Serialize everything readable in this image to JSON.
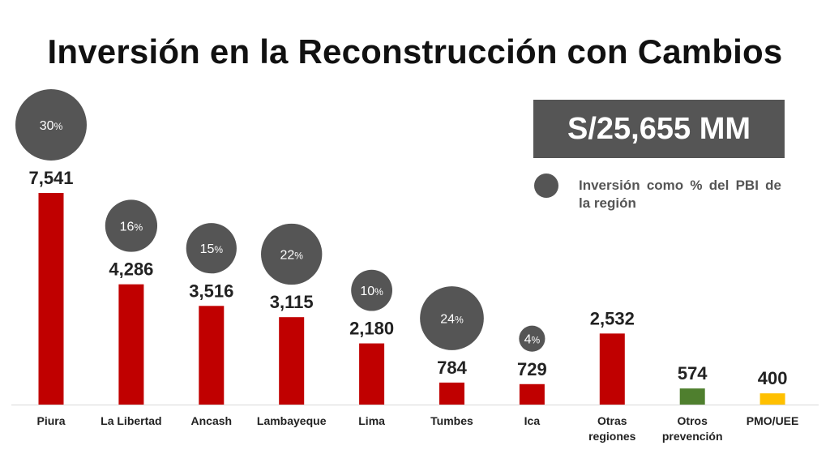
{
  "title": "Inversión en la Reconstrucción con Cambios",
  "total": "S/25,655 MM",
  "legend": {
    "text": "Inversión como % del PBI de la región",
    "color": "#555555"
  },
  "colors": {
    "red": "#c00000",
    "green": "#4f7f2e",
    "yellow": "#ffc000",
    "bubble": "#555555"
  },
  "chart_data": {
    "type": "bar",
    "title": "Inversión en la Reconstrucción con Cambios",
    "xlabel": "",
    "ylabel": "",
    "ylim": [
      0,
      7541
    ],
    "grid": false,
    "categories": [
      "Piura",
      "La Libertad",
      "Ancash",
      "Lambayeque",
      "Lima",
      "Tumbes",
      "Ica",
      "Otras regiones",
      "Otros prevención",
      "PMO/UEE"
    ],
    "values": [
      7541,
      4286,
      3516,
      3115,
      2180,
      784,
      729,
      2532,
      574,
      400
    ],
    "value_labels": [
      "7,541",
      "4,286",
      "3,516",
      "3,115",
      "2,180",
      "784",
      "729",
      "2,532",
      "574",
      "400"
    ],
    "bar_colors": [
      "red",
      "red",
      "red",
      "red",
      "red",
      "red",
      "red",
      "red",
      "green",
      "yellow"
    ],
    "pbi_percent": [
      30,
      16,
      15,
      22,
      10,
      24,
      4,
      null,
      null,
      null
    ],
    "pbi_percent_labels": [
      "30",
      "16",
      "15",
      "22",
      "10",
      "24",
      "4",
      "",
      "",
      ""
    ],
    "percent_sign": "%"
  }
}
